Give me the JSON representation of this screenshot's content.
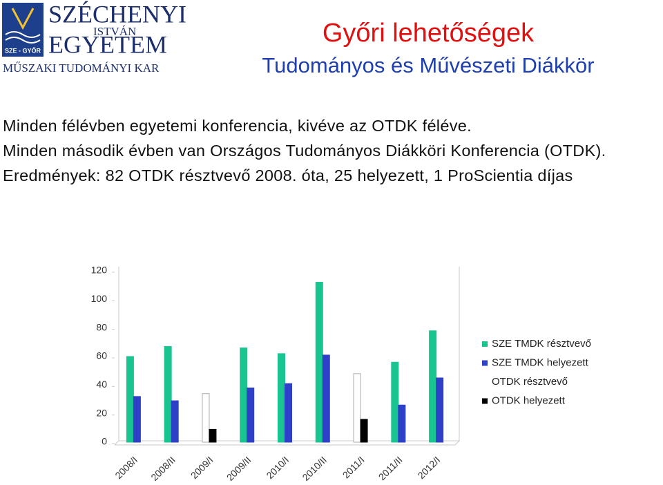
{
  "logo": {
    "name1": "SZÉCHENYI",
    "name2": "ISTVÁN",
    "name3": "EGYETEM",
    "badge": "SZE - GYŐR",
    "faculty": "MŰSZAKI TUDOMÁNYI KAR"
  },
  "header": {
    "title": "Győri lehetőségek",
    "subtitle": "Tudományos és Művészeti Diákkör"
  },
  "body": [
    "Minden félévben egyetemi konferencia, kivéve az OTDK féléve.",
    "Minden második évben van Országos Tudományos Diákköri Konferencia (OTDK).",
    "Eredmények: 82 OTDK résztvevő 2008. óta, 25 helyezett, 1 ProScientia díjas"
  ],
  "chart_data": {
    "type": "bar",
    "categories": [
      "2008/I",
      "2008/II",
      "2009/I",
      "2009/II",
      "2010/I",
      "2010/II",
      "2011/I",
      "2011/II",
      "2012/I"
    ],
    "series": [
      {
        "name": "SZE TMDK résztvevő",
        "color": "#19c490",
        "values": [
          60,
          67,
          null,
          66,
          62,
          112,
          null,
          56,
          78
        ]
      },
      {
        "name": "SZE TMDK helyezett",
        "color": "#2e3fc8",
        "values": [
          32,
          29,
          null,
          38,
          41,
          61,
          null,
          26,
          45
        ]
      },
      {
        "name": "OTDK résztvevő",
        "color": "#ffffff",
        "values": [
          null,
          null,
          34,
          null,
          null,
          null,
          48,
          null,
          null
        ]
      },
      {
        "name": "OTDK helyezett",
        "color": "#000000",
        "values": [
          null,
          null,
          9,
          null,
          null,
          null,
          16,
          null,
          null
        ]
      }
    ],
    "ylim": [
      0,
      120
    ],
    "yticks": [
      0,
      20,
      40,
      60,
      80,
      100,
      120
    ],
    "grid": false,
    "legend": "right"
  }
}
